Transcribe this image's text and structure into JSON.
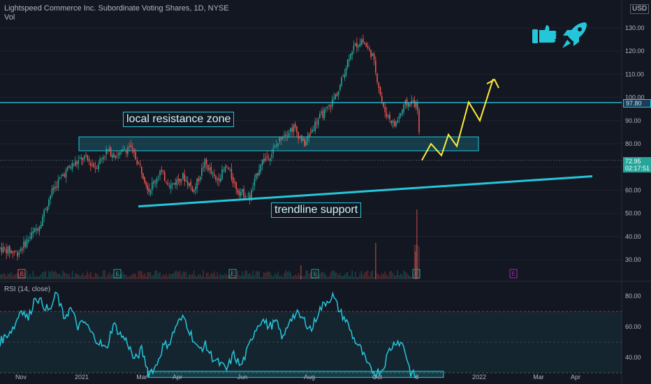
{
  "header": {
    "symbol_line": "Lightspeed Commerce Inc. Subordinate Voting Shares, 1D, NYSE",
    "volume_label": "Vol",
    "currency": "USD",
    "rsi_label": "RSI (14, close)"
  },
  "annotations": {
    "resistance_label": "local resistance zone",
    "trendline_label": "trendline support"
  },
  "price_tags": {
    "hline_value": "97.80",
    "last_price": "72.95",
    "countdown": "02:17:51"
  },
  "colors": {
    "background": "#131722",
    "up": "#26a69a",
    "down": "#ef5350",
    "annotation": "#26c6da",
    "projection": "#ffeb3b",
    "rsi_line": "#26c6da",
    "thumbs_rocket": "#26c6da"
  },
  "icons": [
    "thumbs-up-icon",
    "rocket-icon",
    "earnings-marker-icon"
  ],
  "chart_data": [
    {
      "type": "candlestick",
      "title": "Lightspeed Commerce Inc. Subordinate Voting Shares, 1D, NYSE",
      "y_axis_ticks": [
        "30.00",
        "40.00",
        "50.00",
        "60.00",
        "70.00",
        "80.00",
        "90.00",
        "100.00",
        "110.00",
        "120.00",
        "130.00"
      ],
      "x_axis_ticks": [
        "Nov",
        "2021",
        "Mar",
        "Apr",
        "Jun",
        "Aug",
        "Oct",
        "8",
        "2022",
        "Mar",
        "Apr"
      ],
      "ylim": [
        25,
        140
      ],
      "horizontal_line": 97.8,
      "resistance_zone": [
        77,
        83
      ],
      "trendline_support": {
        "from": {
          "x": "2021-02-25",
          "y": 53
        },
        "to": {
          "x": "2022-04-10",
          "y": 66
        }
      },
      "projection_path": [
        72.9,
        80,
        75,
        84,
        79,
        98,
        90,
        108
      ],
      "last_price": 72.95,
      "close_path": [
        {
          "x": "2020-10-20",
          "y": 35
        },
        {
          "x": "2020-11-05",
          "y": 33
        },
        {
          "x": "2020-11-15",
          "y": 39
        },
        {
          "x": "2020-11-25",
          "y": 45
        },
        {
          "x": "2020-12-05",
          "y": 58
        },
        {
          "x": "2020-12-15",
          "y": 66
        },
        {
          "x": "2020-12-25",
          "y": 71
        },
        {
          "x": "2021-01-05",
          "y": 74
        },
        {
          "x": "2021-01-15",
          "y": 70
        },
        {
          "x": "2021-01-25",
          "y": 77
        },
        {
          "x": "2021-02-05",
          "y": 75
        },
        {
          "x": "2021-02-15",
          "y": 79
        },
        {
          "x": "2021-02-25",
          "y": 70
        },
        {
          "x": "2021-03-05",
          "y": 60
        },
        {
          "x": "2021-03-15",
          "y": 68
        },
        {
          "x": "2021-03-25",
          "y": 62
        },
        {
          "x": "2021-04-05",
          "y": 66
        },
        {
          "x": "2021-04-15",
          "y": 60
        },
        {
          "x": "2021-04-25",
          "y": 72
        },
        {
          "x": "2021-05-05",
          "y": 64
        },
        {
          "x": "2021-05-15",
          "y": 70
        },
        {
          "x": "2021-05-25",
          "y": 60
        },
        {
          "x": "2021-06-05",
          "y": 57
        },
        {
          "x": "2021-06-15",
          "y": 72
        },
        {
          "x": "2021-06-25",
          "y": 76
        },
        {
          "x": "2021-07-05",
          "y": 84
        },
        {
          "x": "2021-07-15",
          "y": 87
        },
        {
          "x": "2021-07-25",
          "y": 80
        },
        {
          "x": "2021-08-05",
          "y": 90
        },
        {
          "x": "2021-08-15",
          "y": 95
        },
        {
          "x": "2021-08-25",
          "y": 103
        },
        {
          "x": "2021-09-05",
          "y": 120
        },
        {
          "x": "2021-09-15",
          "y": 125
        },
        {
          "x": "2021-09-25",
          "y": 118
        },
        {
          "x": "2021-10-05",
          "y": 95
        },
        {
          "x": "2021-10-15",
          "y": 88
        },
        {
          "x": "2021-10-25",
          "y": 97
        },
        {
          "x": "2021-11-01",
          "y": 98
        },
        {
          "x": "2021-11-05",
          "y": 96
        },
        {
          "x": "2021-11-08",
          "y": 72
        }
      ]
    },
    {
      "type": "line",
      "title": "RSI (14, close)",
      "y_axis_ticks": [
        "40.00",
        "60.00",
        "80.00"
      ],
      "ylim": [
        25,
        90
      ],
      "upper_band": 70,
      "middle_band": 50,
      "lower_band": 30,
      "values": [
        50,
        55,
        60,
        72,
        65,
        80,
        75,
        70,
        82,
        66,
        72,
        60,
        63,
        55,
        50,
        45,
        62,
        55,
        50,
        38,
        45,
        30,
        34,
        47,
        50,
        62,
        66,
        55,
        45,
        48,
        40,
        36,
        32,
        42,
        34,
        45,
        58,
        65,
        60,
        63,
        52,
        66,
        68,
        64,
        58,
        70,
        76,
        80,
        70,
        63,
        52,
        45,
        34,
        30,
        32,
        45,
        51,
        48,
        30,
        27
      ]
    }
  ]
}
